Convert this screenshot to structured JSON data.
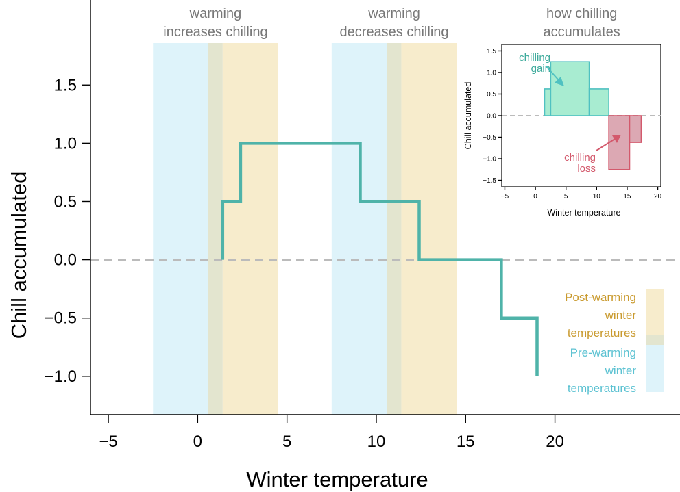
{
  "colors": {
    "step_line": "#4fb3a9",
    "zero_line": "#bbbbbb",
    "pre_band": "#def3fa",
    "post_band": "#f7eccc",
    "overlap_band": "#e3e5cf",
    "gain_fill": "#a8ecd1",
    "gain_stroke": "#4fc1c1",
    "loss_fill": "#dca8b3",
    "loss_stroke": "#d3596c",
    "annotation_text": "#777777",
    "legend_post_text": "#c99a2e",
    "legend_pre_text": "#5cc2d2"
  },
  "chart_data": [
    {
      "type": "line",
      "role": "main",
      "title": "",
      "xlabel": "Winter temperature",
      "ylabel": "Chill accumulated",
      "xlim": [
        -6,
        27
      ],
      "ylim": [
        -1.33,
        2.23
      ],
      "x_ticks": [
        -5,
        0,
        5,
        10,
        15,
        20
      ],
      "x_tick_labels": [
        "−5",
        "0",
        "5",
        "10",
        "15",
        "20"
      ],
      "y_ticks": [
        -1.0,
        -0.5,
        0.0,
        0.5,
        1.0,
        1.5
      ],
      "y_tick_labels": [
        "−1.0",
        "−0.5",
        "0.0",
        "0.5",
        "1.0",
        "1.5"
      ],
      "reference_line_y": 0,
      "series": [
        {
          "style": "step",
          "points": [
            [
              1.4,
              0.0
            ],
            [
              1.4,
              0.5
            ],
            [
              2.4,
              0.5
            ],
            [
              2.4,
              1.0
            ],
            [
              9.1,
              1.0
            ],
            [
              9.1,
              0.5
            ],
            [
              12.4,
              0.5
            ],
            [
              12.4,
              0.0
            ],
            [
              17.0,
              0.0
            ],
            [
              17.0,
              -0.5
            ],
            [
              19.0,
              -0.5
            ],
            [
              19.0,
              -1.0
            ]
          ]
        }
      ],
      "bands": [
        {
          "kind": "pre",
          "from": -2.5,
          "to": 0.6
        },
        {
          "kind": "overlap",
          "from": 0.6,
          "to": 1.4
        },
        {
          "kind": "post",
          "from": 1.4,
          "to": 4.5
        },
        {
          "kind": "pre",
          "from": 7.5,
          "to": 10.6
        },
        {
          "kind": "overlap",
          "from": 10.6,
          "to": 11.4
        },
        {
          "kind": "post",
          "from": 11.4,
          "to": 14.5
        }
      ],
      "annotations": [
        {
          "lines": [
            "warming",
            "increases chilling"
          ],
          "x": 1.0
        },
        {
          "lines": [
            "warming",
            "decreases chilling"
          ],
          "x": 11.0
        },
        {
          "lines": [
            "how chilling",
            "accumulates"
          ],
          "x": 21.5
        }
      ],
      "legend": {
        "placement": "bottom-right",
        "post_label": [
          "Post-warming",
          "winter",
          "temperatures"
        ],
        "pre_label": [
          "Pre-warming",
          "winter",
          "temperatures"
        ]
      }
    },
    {
      "type": "bar",
      "role": "inset",
      "title": "",
      "xlabel": "Winter temperature",
      "ylabel": "Chill accumulated",
      "xlim": [
        -5.5,
        20.5
      ],
      "ylim": [
        -1.65,
        1.65
      ],
      "x_ticks": [
        -5,
        0,
        5,
        10,
        15,
        20
      ],
      "x_tick_labels": [
        "−5",
        "0",
        "5",
        "10",
        "15",
        "20"
      ],
      "y_ticks": [
        -1.5,
        -1.0,
        -0.5,
        0.0,
        0.5,
        1.0,
        1.5
      ],
      "y_tick_labels": [
        "−1.5",
        "−1.0",
        "−0.5",
        "0.0",
        "0.5",
        "1.0",
        "1.5"
      ],
      "reference_line_y": 0,
      "bars": [
        {
          "group": "gain",
          "x0": 1.5,
          "x1": 2.5,
          "value": 0.62
        },
        {
          "group": "gain",
          "x0": 2.5,
          "x1": 8.8,
          "value": 1.25
        },
        {
          "group": "gain",
          "x0": 8.8,
          "x1": 12.0,
          "value": 0.62
        },
        {
          "group": "loss",
          "x0": 12.0,
          "x1": 15.4,
          "value": -1.25
        },
        {
          "group": "loss",
          "x0": 15.4,
          "x1": 17.3,
          "value": -0.62
        }
      ],
      "labels": {
        "gain": [
          "chilling",
          "gain"
        ],
        "loss": [
          "chilling",
          "loss"
        ]
      }
    }
  ]
}
